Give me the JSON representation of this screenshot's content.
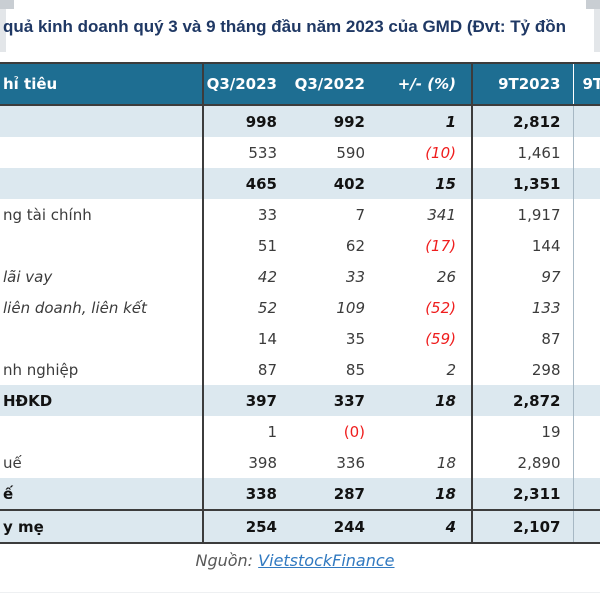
{
  "title": "quả kinh doanh quý 3 và 9 tháng đầu năm 2023 của GMD (Đvt: Tỷ đồn",
  "chart_data": {
    "type": "table",
    "columns": [
      "hỉ tiêu",
      "Q3/2023",
      "Q3/2022",
      "+/- (%)",
      "9T2023",
      "9T"
    ],
    "rows": [
      {
        "label": "",
        "q3_2023": "998",
        "q3_2022": "992",
        "pct": "1",
        "t9_2023": "2,812",
        "emphasis": true
      },
      {
        "label": "",
        "q3_2023": "533",
        "q3_2022": "590",
        "pct": "(10)",
        "t9_2023": "1,461"
      },
      {
        "label": "",
        "q3_2023": "465",
        "q3_2022": "402",
        "pct": "15",
        "t9_2023": "1,351",
        "emphasis": true
      },
      {
        "label": "ng tài chính",
        "q3_2023": "33",
        "q3_2022": "7",
        "pct": "341",
        "t9_2023": "1,917"
      },
      {
        "label": "",
        "q3_2023": "51",
        "q3_2022": "62",
        "pct": "(17)",
        "t9_2023": "144"
      },
      {
        "label": "lãi vay",
        "q3_2023": "42",
        "q3_2022": "33",
        "pct": "26",
        "t9_2023": "97",
        "italic": true
      },
      {
        "label": "liên doanh, liên kết",
        "q3_2023": "52",
        "q3_2022": "109",
        "pct": "(52)",
        "t9_2023": "133",
        "italic": true
      },
      {
        "label": "",
        "q3_2023": "14",
        "q3_2022": "35",
        "pct": "(59)",
        "t9_2023": "87"
      },
      {
        "label": "nh nghiệp",
        "q3_2023": "87",
        "q3_2022": "85",
        "pct": "2",
        "t9_2023": "298"
      },
      {
        "label": "HĐKD",
        "q3_2023": "397",
        "q3_2022": "337",
        "pct": "18",
        "t9_2023": "2,872",
        "emphasis": true
      },
      {
        "label": "",
        "q3_2023": "1",
        "q3_2022": "(0)",
        "pct": "",
        "t9_2023": "19"
      },
      {
        "label": "uế",
        "q3_2023": "398",
        "q3_2022": "336",
        "pct": "18",
        "t9_2023": "2,890"
      },
      {
        "label": "ế",
        "q3_2023": "338",
        "q3_2022": "287",
        "pct": "18",
        "t9_2023": "2,311",
        "emphasis": true
      },
      {
        "label": "y mẹ",
        "q3_2023": "254",
        "q3_2022": "244",
        "pct": "4",
        "t9_2023": "2,107",
        "emphasis": true,
        "topline": true
      }
    ]
  },
  "source": {
    "prefix": "Nguồn:",
    "link_text": "VietstockFinance"
  },
  "colors": {
    "header_bg": "#1e6e92",
    "row_alt": "#dce8ef",
    "neg_color": "#ef1d1d",
    "title_color": "#1f3864",
    "link_color": "#3079c0",
    "border_dark": "#3c3c3c"
  }
}
